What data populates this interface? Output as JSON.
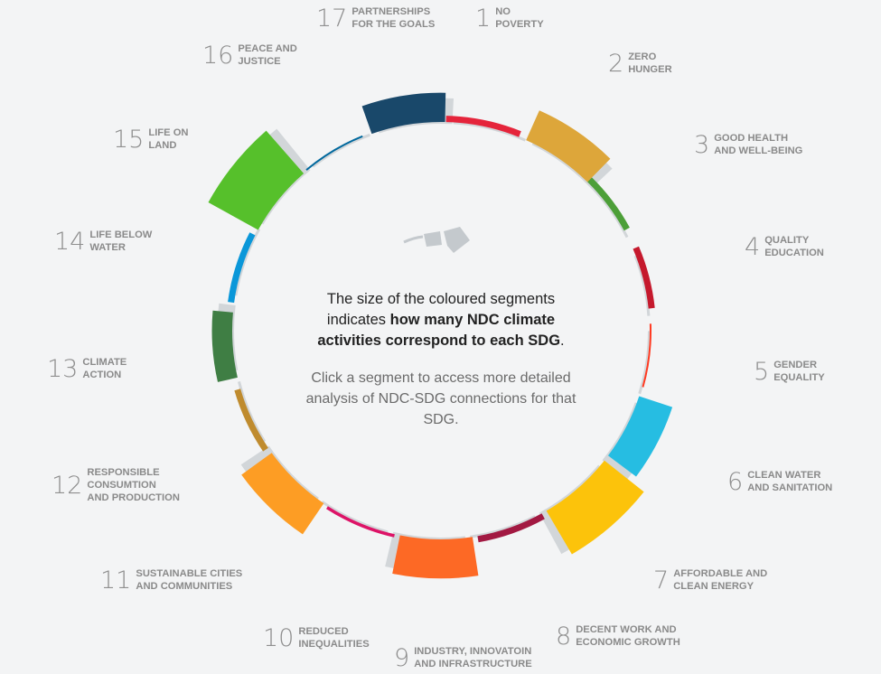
{
  "chart_data": {
    "type": "radial",
    "description_intro": "The size of the coloured segments indicates",
    "description_bold": "how many NDC climate activities correspond to each SDG",
    "description_end": ".",
    "instruction": "Click a segment to access more detailed analysis of NDC-SDG connections for that SDG.",
    "goals": [
      {
        "number": "1",
        "name": "No\nPoverty",
        "color": "#e5243b",
        "size": 1
      },
      {
        "number": "2",
        "name": "Zero\nHunger",
        "color": "#dda63a",
        "size": 4
      },
      {
        "number": "3",
        "name": "Good Health\nand Well-Being",
        "color": "#4c9f38",
        "size": 1
      },
      {
        "number": "4",
        "name": "Quality\nEducation",
        "color": "#c5192d",
        "size": 1.6
      },
      {
        "number": "5",
        "name": "Gender\nEquality",
        "color": "#ff3a21",
        "size": 0.2
      },
      {
        "number": "6",
        "name": "Clean Water\nand Sanitation",
        "color": "#26bde2",
        "size": 4.3
      },
      {
        "number": "7",
        "name": "Affordable and\nClean Energy",
        "color": "#fcc30b",
        "size": 6.2
      },
      {
        "number": "8",
        "name": "Decent Work and\nEconomic Growth",
        "color": "#a21942",
        "size": 2
      },
      {
        "number": "9",
        "name": "Industry, Innovatoin\nand Infrastructure",
        "color": "#fd6925",
        "size": 4.8
      },
      {
        "number": "10",
        "name": "Reduced\nInequalities",
        "color": "#dd1367",
        "size": 0.4
      },
      {
        "number": "11",
        "name": "Sustainable Cities\nand Communities",
        "color": "#fd9d24",
        "size": 4.6
      },
      {
        "number": "12",
        "name": "Responsible\nConsumtion\nand Production",
        "color": "#bf8b2e",
        "size": 1.4
      },
      {
        "number": "13",
        "name": "Climate\nAction",
        "color": "#3f7e44",
        "size": 2.5
      },
      {
        "number": "14",
        "name": "Life Below\nWater",
        "color": "#0a97d9",
        "size": 1
      },
      {
        "number": "15",
        "name": "Life on\nLand",
        "color": "#56c02b",
        "size": 7
      },
      {
        "number": "16",
        "name": "Peace and\nJustice",
        "color": "#00689d",
        "size": 0.2
      },
      {
        "number": "17",
        "name": "Partnerships\nfor the Goals",
        "color": "#19486a",
        "size": 3.6
      }
    ]
  }
}
